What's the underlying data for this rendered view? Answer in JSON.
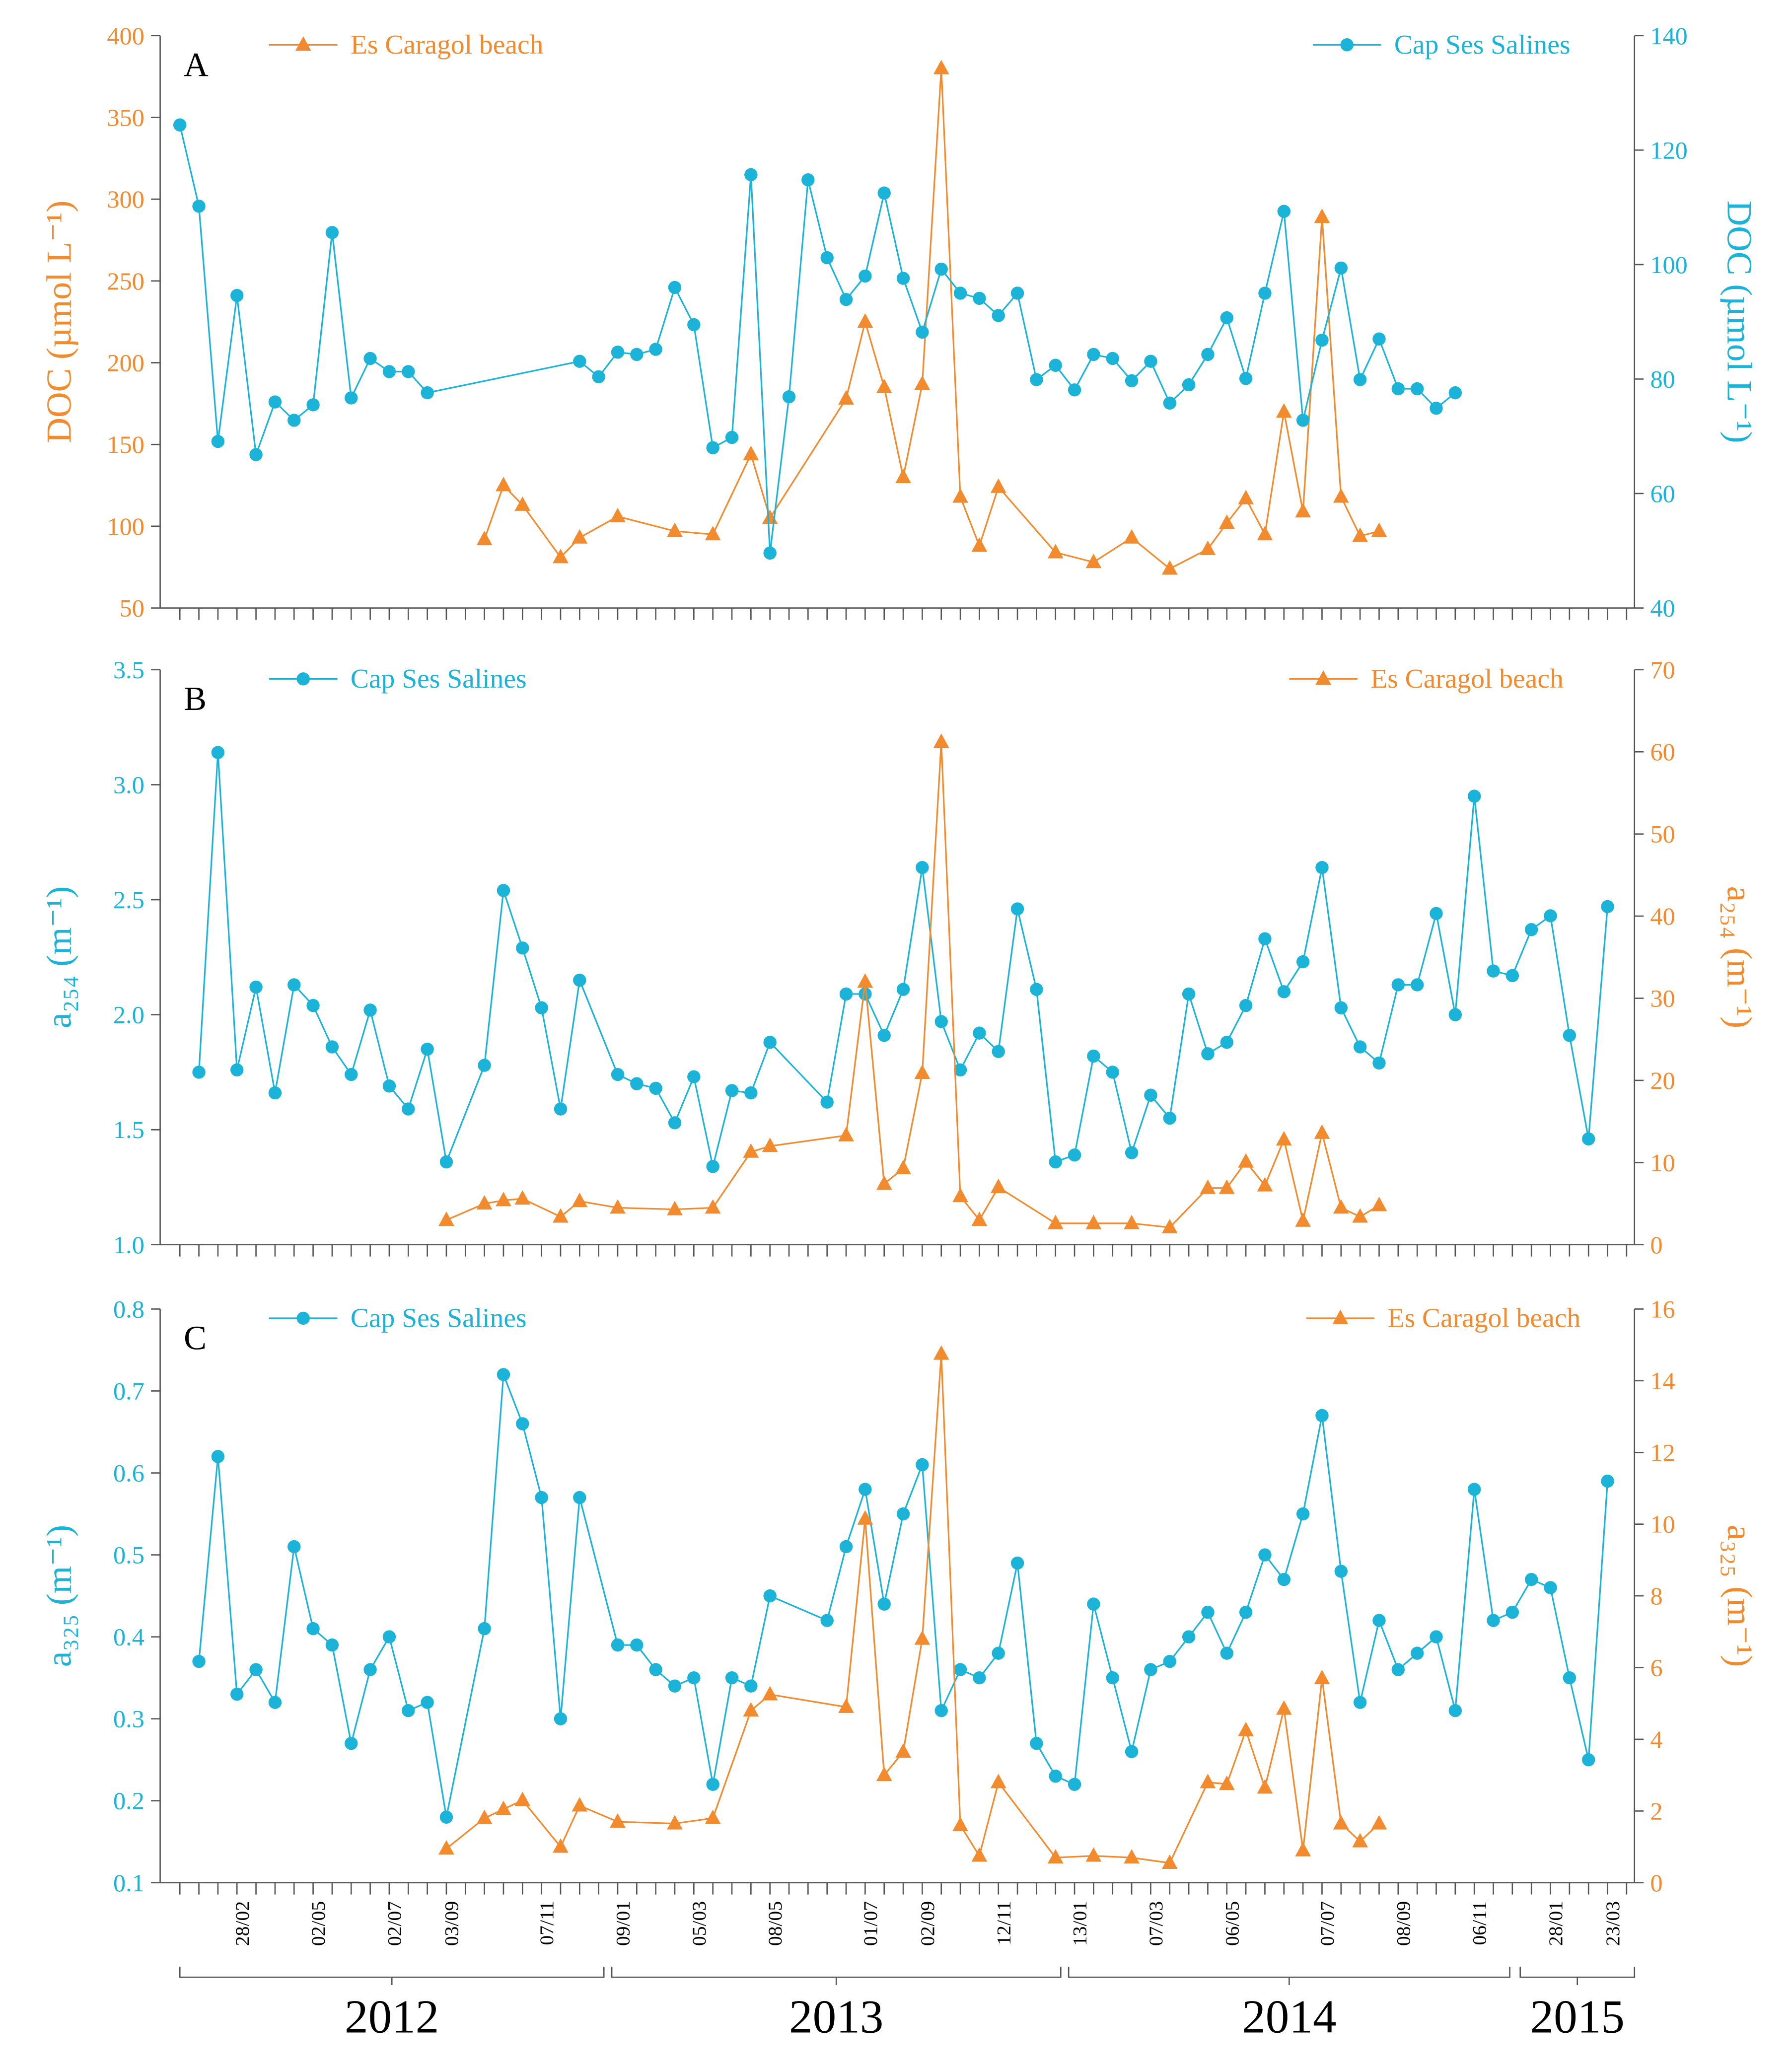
{
  "chart_data": [
    {
      "type": "line",
      "label": "A",
      "ylabel": "DOC (µmol L⁻¹)",
      "y2label": "DOC (µmol L⁻¹)",
      "ylim": [
        50,
        400
      ],
      "yticks": [
        50,
        100,
        150,
        200,
        250,
        300,
        350,
        400
      ],
      "y2lim": [
        40,
        140
      ],
      "y2ticks": [
        40,
        60,
        80,
        100,
        120,
        140
      ],
      "series": [
        {
          "name": "Es Caragol beach",
          "color": "#f28a2e",
          "marker": "triangle",
          "axis": "y",
          "values": [
            null,
            null,
            null,
            null,
            null,
            null,
            null,
            null,
            null,
            null,
            null,
            null,
            null,
            null,
            null,
            null,
            92,
            125,
            113,
            null,
            81,
            93,
            null,
            106,
            null,
            null,
            97,
            null,
            95,
            null,
            144,
            105,
            null,
            null,
            null,
            178,
            225,
            185,
            130,
            187,
            380,
            118,
            88,
            124,
            null,
            null,
            84,
            null,
            78,
            null,
            93,
            null,
            74,
            null,
            86,
            102,
            117,
            95,
            170,
            109,
            289,
            118,
            94,
            97,
            null,
            null,
            null,
            null,
            null,
            null,
            null,
            null,
            null,
            null,
            null,
            null,
            null
          ]
        },
        {
          "name": "Cap Ses Salines",
          "color": "#1cb3d9",
          "marker": "circle",
          "axis": "y2",
          "values": [
            124.4,
            110.2,
            69.1,
            94.6,
            66.8,
            76,
            72.8,
            75.5,
            105.6,
            76.7,
            83.6,
            81.3,
            81.3,
            77.6,
            null,
            null,
            null,
            null,
            null,
            null,
            null,
            83.1,
            80.4,
            84.7,
            84.3,
            85.2,
            96,
            89.5,
            68,
            69.8,
            115.7,
            49.6,
            76.9,
            114.8,
            101.2,
            93.9,
            98,
            112.5,
            97.6,
            88.2,
            99.2,
            95,
            94.1,
            91.1,
            95,
            79.9,
            82.4,
            78.1,
            84.3,
            83.6,
            79.7,
            83.1,
            75.8,
            79,
            84.3,
            90.7,
            80.1,
            95,
            109.3,
            72.8,
            86.8,
            99.4,
            79.9,
            87,
            78.3,
            78.3,
            74.9,
            77.6,
            null,
            null,
            null,
            null,
            null,
            null,
            null,
            null,
            null
          ]
        }
      ]
    },
    {
      "type": "line",
      "label": "B",
      "ylabel": "a₂₅₄ (m⁻¹)",
      "y2label": "a₂₅₄ (m⁻¹)",
      "ylim": [
        1,
        3.5
      ],
      "yticks": [
        {
          "value": 1,
          "label": "1.0"
        },
        1.5,
        {
          "value": 2,
          "label": "2.0"
        },
        2.5,
        {
          "value": 3,
          "label": "3.0"
        },
        3.5
      ],
      "y2lim": [
        0,
        70
      ],
      "y2ticks": [
        0,
        10,
        20,
        30,
        40,
        50,
        60,
        70
      ],
      "series": [
        {
          "name": "Cap Ses Salines",
          "color": "#1cb3d9",
          "marker": "circle",
          "axis": "y",
          "values": [
            null,
            1.75,
            3.14,
            1.76,
            2.12,
            1.66,
            2.13,
            2.04,
            1.86,
            1.74,
            2.02,
            1.69,
            1.59,
            1.85,
            1.36,
            null,
            1.78,
            2.54,
            2.29,
            2.03,
            1.59,
            2.15,
            null,
            1.74,
            1.7,
            1.68,
            1.53,
            1.73,
            1.34,
            1.67,
            1.66,
            1.88,
            null,
            null,
            1.62,
            2.09,
            2.09,
            1.91,
            2.11,
            2.64,
            1.97,
            1.76,
            1.92,
            1.84,
            2.46,
            2.11,
            1.36,
            1.39,
            1.82,
            1.75,
            1.4,
            1.65,
            1.55,
            2.09,
            1.83,
            1.88,
            2.04,
            2.33,
            2.1,
            2.23,
            2.64,
            2.03,
            1.86,
            1.79,
            2.13,
            2.13,
            2.44,
            2,
            2.95,
            2.19,
            2.17,
            2.37,
            2.43,
            1.91,
            1.46,
            2.47,
            null
          ]
        },
        {
          "name": "Es Caragol beach",
          "color": "#f28a2e",
          "marker": "triangle",
          "axis": "y2",
          "values": [
            null,
            null,
            null,
            null,
            null,
            null,
            null,
            null,
            null,
            null,
            null,
            null,
            null,
            null,
            3,
            null,
            5,
            5.4,
            5.6,
            null,
            3.4,
            5.3,
            null,
            4.5,
            null,
            null,
            4.3,
            null,
            4.5,
            null,
            11.3,
            12,
            null,
            null,
            null,
            13.3,
            32,
            7.4,
            9.3,
            20.9,
            61.2,
            5.9,
            3,
            7,
            null,
            null,
            2.6,
            null,
            2.6,
            null,
            2.6,
            null,
            2.1,
            null,
            6.9,
            6.9,
            10.1,
            7.2,
            12.8,
            2.9,
            13.6,
            4.5,
            3.4,
            4.8,
            null,
            null,
            null,
            null,
            null,
            null,
            null,
            null,
            null,
            null,
            null,
            null,
            null
          ]
        }
      ]
    },
    {
      "type": "line",
      "label": "C",
      "ylabel": "a₃₂₅ (m⁻¹)",
      "y2label": "a₃₂₅ (m⁻¹)",
      "ylim": [
        0.1,
        0.8
      ],
      "yticks": [
        0.1,
        0.2,
        0.3,
        0.4,
        0.5,
        0.6,
        0.7,
        0.8
      ],
      "y2lim": [
        0,
        16
      ],
      "y2ticks": [
        0,
        2,
        4,
        6,
        8,
        10,
        12,
        14,
        16
      ],
      "categories": [
        null,
        null,
        null,
        "28/02",
        null,
        null,
        null,
        "02/05",
        null,
        null,
        null,
        "02/07",
        null,
        null,
        "03/09",
        null,
        null,
        null,
        null,
        "07/11",
        null,
        null,
        null,
        "09/01",
        null,
        null,
        null,
        "05/03",
        null,
        null,
        null,
        "08/05",
        null,
        null,
        null,
        null,
        "01/07",
        null,
        null,
        "02/09",
        null,
        null,
        null,
        "12/11",
        null,
        null,
        null,
        "13/01",
        null,
        null,
        null,
        "07/03",
        null,
        null,
        null,
        "06/05",
        null,
        null,
        null,
        null,
        "07/07",
        null,
        null,
        null,
        "08/09",
        null,
        null,
        null,
        "06/11",
        null,
        null,
        null,
        "28/01",
        null,
        null,
        "23/03",
        null
      ],
      "x_groups": [
        "2012",
        "2013",
        "2014",
        "2015"
      ],
      "series": [
        {
          "name": "Cap Ses Salines",
          "color": "#1cb3d9",
          "marker": "circle",
          "axis": "y",
          "values": [
            null,
            0.37,
            0.62,
            0.33,
            0.36,
            0.32,
            0.51,
            0.41,
            0.39,
            0.27,
            0.36,
            0.4,
            0.31,
            0.32,
            0.18,
            null,
            0.41,
            0.72,
            0.66,
            0.57,
            0.3,
            0.57,
            null,
            0.39,
            0.39,
            0.36,
            0.34,
            0.35,
            0.22,
            0.35,
            0.34,
            0.45,
            null,
            null,
            0.42,
            0.51,
            0.58,
            0.44,
            0.55,
            0.61,
            0.31,
            0.36,
            0.35,
            0.38,
            0.49,
            0.27,
            0.23,
            0.22,
            0.44,
            0.35,
            0.26,
            0.36,
            0.37,
            0.4,
            0.43,
            0.38,
            0.43,
            0.5,
            0.47,
            0.55,
            0.67,
            0.48,
            0.32,
            0.42,
            0.36,
            0.38,
            0.4,
            0.31,
            0.58,
            0.42,
            0.43,
            0.47,
            0.46,
            0.35,
            0.25,
            0.59,
            null
          ]
        },
        {
          "name": "Es Caragol beach",
          "color": "#f28a2e",
          "marker": "triangle",
          "axis": "y2",
          "values": [
            null,
            null,
            null,
            null,
            null,
            null,
            null,
            null,
            null,
            null,
            null,
            null,
            null,
            null,
            0.95,
            null,
            1.8,
            2.05,
            2.3,
            null,
            1,
            2.15,
            null,
            1.7,
            null,
            null,
            1.65,
            null,
            1.8,
            null,
            4.8,
            5.25,
            null,
            null,
            null,
            4.9,
            10.15,
            3,
            3.65,
            6.8,
            14.75,
            1.6,
            0.75,
            2.8,
            null,
            null,
            0.7,
            null,
            0.75,
            null,
            0.7,
            null,
            0.55,
            null,
            2.8,
            2.75,
            4.25,
            2.65,
            4.85,
            0.9,
            5.7,
            1.65,
            1.15,
            1.65,
            null,
            null,
            null,
            null,
            null,
            null,
            null,
            null,
            null,
            null,
            null,
            null,
            null
          ]
        }
      ]
    }
  ]
}
